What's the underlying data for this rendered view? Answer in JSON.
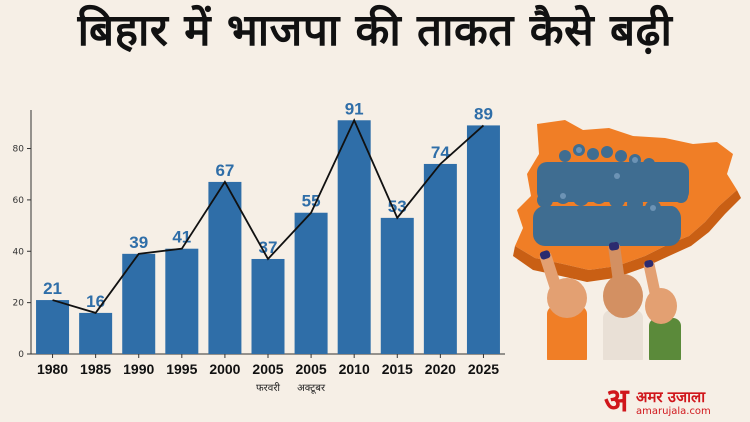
{
  "title": "बिहार में भाजपा की ताकत कैसे बढ़ी",
  "chart_data": {
    "type": "bar",
    "title": "बिहार में भाजपा की ताकत कैसे बढ़ी",
    "categories": [
      "1980",
      "1985",
      "1990",
      "1995",
      "2000",
      "2005",
      "2005",
      "2010",
      "2015",
      "2020",
      "2025"
    ],
    "category_sublabels": [
      "",
      "",
      "",
      "",
      "",
      "फरवरी",
      "अक्टूबर",
      "",
      "",
      "",
      ""
    ],
    "values": [
      21,
      16,
      39,
      41,
      67,
      37,
      55,
      91,
      53,
      74,
      89
    ],
    "line_overlay": true,
    "ylim": [
      0,
      95
    ],
    "yticks": [
      0,
      20,
      40,
      60,
      80
    ],
    "xlabel": "",
    "ylabel": "",
    "grid": false,
    "colors": {
      "bar": "#2f6ea8",
      "label": "#2f6ea8",
      "line": "#111111",
      "axis": "#333333"
    }
  },
  "brand": {
    "mark": "अ",
    "name": "अमर उजाला",
    "url": "amarujala.com",
    "color": "#d0161b"
  },
  "illustration": {
    "icon": "bihar-map-crowd-voting-hands-icon",
    "colors": [
      "#f07e26",
      "#e9e0d6",
      "#3f6d91",
      "#5b8a3a"
    ]
  }
}
